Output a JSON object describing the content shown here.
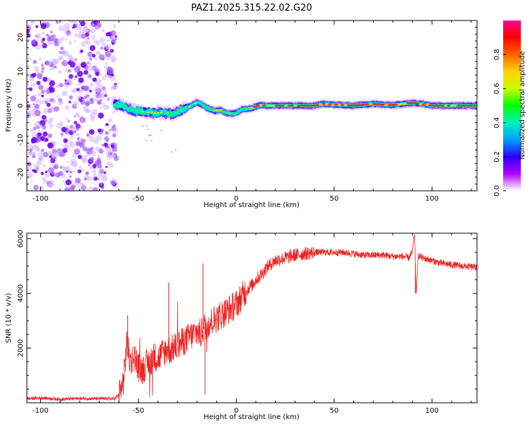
{
  "title": "PAZ1.2025.315.22.02.G20",
  "chart_data": [
    {
      "type": "heatmap",
      "name": "spectrogram",
      "xlabel": "Height of straight line (km)",
      "ylabel": "Frequency (Hz)",
      "xlim": [
        -107,
        123
      ],
      "ylim": [
        -25,
        25
      ],
      "xticks": [
        -100,
        -50,
        0,
        50,
        100
      ],
      "yticks": [
        -20,
        -10,
        0,
        10,
        20
      ],
      "colorbar": {
        "label": "Normalized spectral amplitude",
        "range": [
          0.0,
          1.0
        ],
        "ticks": [
          0.0,
          0.2,
          0.4,
          0.6,
          0.8
        ],
        "tick_labels": [
          "0.0",
          "0.2",
          "0.4",
          "0.6",
          "0.8"
        ],
        "colors": [
          "#ffffff",
          "#b400ff",
          "#2a00ff",
          "#00a0ff",
          "#00f0c0",
          "#00ff00",
          "#c8ff00",
          "#ffd200",
          "#ff6400",
          "#ff0000",
          "#ff0090"
        ]
      },
      "noise_region_x": [
        -107,
        -61
      ],
      "ridge": {
        "x": [
          -62,
          -58,
          -55,
          -52,
          -50,
          -47,
          -44,
          -41,
          -38,
          -35,
          -32,
          -29,
          -26,
          -23,
          -20,
          -17,
          -14,
          -11,
          -8,
          -5,
          -2,
          0,
          3,
          6,
          9,
          12,
          15,
          20,
          25,
          30,
          35,
          40,
          45,
          50,
          55,
          60,
          65,
          70,
          75,
          80,
          85,
          90,
          95,
          100,
          105,
          110,
          115,
          123
        ],
        "y": [
          0.5,
          0.0,
          -1.0,
          -1.5,
          -1.5,
          -1.8,
          -2.0,
          -2.2,
          -2.0,
          -2.3,
          -2.5,
          -1.5,
          -0.8,
          0.0,
          1.0,
          0.2,
          -1.0,
          -1.5,
          -1.3,
          -2.2,
          -2.3,
          -2.2,
          -1.0,
          -1.0,
          -0.5,
          0.2,
          0.0,
          0.0,
          0.0,
          0.0,
          0.0,
          0.0,
          0.5,
          0.3,
          0.2,
          0.0,
          0.3,
          0.5,
          0.3,
          0.2,
          0.5,
          0.8,
          0.5,
          0.0,
          0.0,
          0.0,
          0.0,
          0.0
        ]
      }
    },
    {
      "type": "line",
      "name": "snr",
      "xlabel": "Height of straight line (km)",
      "ylabel": "SNR (10 * v/v)",
      "xlim": [
        -107,
        123
      ],
      "ylim": [
        0,
        6200
      ],
      "xticks": [
        -100,
        -50,
        0,
        50,
        100
      ],
      "yticks": [
        2000,
        4000,
        6000
      ],
      "color": "#ee2222",
      "x": [
        -107,
        -100,
        -90,
        -80,
        -70,
        -62,
        -60,
        -58,
        -57,
        -56,
        -55,
        -54,
        -52,
        -50,
        -48,
        -46,
        -44,
        -42,
        -40,
        -38,
        -36,
        -35,
        -34,
        -32,
        -30,
        -28,
        -26,
        -24,
        -22,
        -20,
        -18,
        -17,
        -16,
        -14,
        -12,
        -10,
        -8,
        -6,
        -4,
        -2,
        0,
        2,
        5,
        8,
        10,
        13,
        15,
        18,
        20,
        25,
        30,
        35,
        40,
        45,
        50,
        55,
        60,
        65,
        70,
        75,
        80,
        85,
        88,
        90,
        91,
        92,
        93,
        95,
        100,
        105,
        110,
        115,
        123
      ],
      "y": [
        150,
        180,
        130,
        160,
        150,
        150,
        300,
        600,
        1200,
        2200,
        1800,
        1500,
        1700,
        1300,
        1200,
        1400,
        1500,
        1700,
        1600,
        1800,
        1900,
        2000,
        1900,
        2000,
        2100,
        2200,
        2300,
        2400,
        2500,
        2600,
        2500,
        2700,
        2800,
        2900,
        3000,
        3100,
        3200,
        3300,
        3400,
        3500,
        3600,
        3800,
        4100,
        4300,
        4500,
        4700,
        4900,
        5100,
        5200,
        5300,
        5400,
        5450,
        5500,
        5500,
        5500,
        5500,
        5450,
        5400,
        5400,
        5400,
        5350,
        5350,
        5300,
        5500,
        6200,
        4000,
        5400,
        5300,
        5200,
        5100,
        5050,
        5000,
        4950
      ]
    }
  ]
}
